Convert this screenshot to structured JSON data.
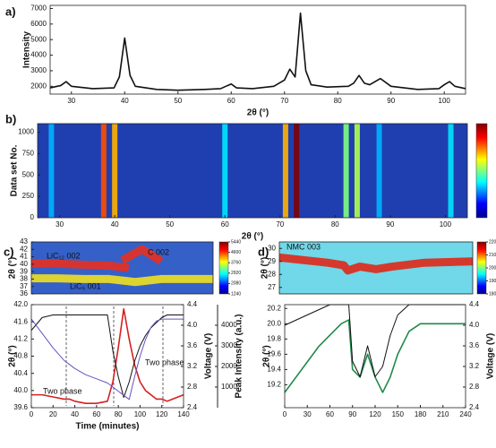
{
  "chart_data": [
    {
      "type": "line",
      "panel_label": "a)",
      "ylabel": "Intensity",
      "xlabel": "2θ (°)",
      "xlim": [
        26,
        104
      ],
      "xticks": [
        30,
        40,
        50,
        60,
        70,
        80,
        90,
        100
      ],
      "ylim": [
        1500,
        7200
      ],
      "yticks": [
        2000,
        3000,
        4000,
        5000,
        6000,
        7000
      ],
      "x": [
        26,
        28,
        29,
        30,
        34,
        38,
        39,
        40,
        41,
        42,
        46,
        50,
        55,
        58,
        59,
        60,
        61,
        64,
        68,
        70,
        71,
        72,
        73,
        74,
        75,
        78,
        82,
        83,
        84,
        85,
        86,
        88,
        90,
        95,
        99,
        100,
        101,
        102,
        104
      ],
      "series": [
        {
          "color": "#111111",
          "values": [
            1900,
            2050,
            2300,
            2000,
            1850,
            1900,
            2600,
            5100,
            2700,
            2000,
            1800,
            1750,
            1800,
            1850,
            2000,
            2150,
            1900,
            1850,
            2000,
            2400,
            3100,
            2600,
            6700,
            3000,
            2100,
            1950,
            2000,
            2200,
            2700,
            2200,
            2100,
            2500,
            2000,
            1800,
            1850,
            2100,
            2300,
            2000,
            1850
          ]
        }
      ]
    },
    {
      "type": "heatmap",
      "panel_label": "b)",
      "ylabel": "Data set No.",
      "xlabel": "2θ (°)",
      "xlim": [
        26,
        104
      ],
      "xticks": [
        30,
        40,
        50,
        60,
        70,
        80,
        90,
        100
      ],
      "ylim": [
        0,
        1100
      ],
      "yticks": [
        0,
        250,
        500,
        750,
        1000
      ],
      "background": "#1f3fb0",
      "clim": [
        0,
        1
      ],
      "peaks": [
        28.5,
        38,
        40,
        60,
        71,
        73,
        82,
        84,
        88,
        101
      ],
      "values": [
        0.3,
        0.8,
        0.7,
        0.35,
        0.7,
        1.0,
        0.5,
        0.55,
        0.3,
        0.35
      ]
    },
    {
      "type": "heatmap",
      "panel_label": "c)",
      "ylabel": "2θ (°)",
      "xlim": [
        0,
        140
      ],
      "ylim": [
        36,
        43
      ],
      "yticks": [
        36,
        37,
        38,
        39,
        40,
        41,
        42,
        43
      ],
      "background": "#3560c8",
      "clim": [
        1240,
        5440
      ],
      "cticks": [
        1240,
        2080,
        2920,
        3760,
        4600,
        5440
      ],
      "traces": [
        {
          "color": "#f0e020",
          "x": [
            0,
            20,
            40,
            60,
            80,
            100,
            120,
            140
          ],
          "values": [
            38.1,
            38.1,
            38.0,
            38.0,
            37.6,
            38.0,
            38.0,
            38.0
          ]
        },
        {
          "color": "#e83020",
          "x": [
            0,
            15,
            30,
            45,
            60,
            75
          ],
          "values": [
            40.1,
            40.1,
            40.0,
            39.9,
            39.8,
            39.5
          ]
        },
        {
          "color": "#e83020",
          "x": [
            70,
            78,
            85,
            92,
            100
          ],
          "values": [
            40.5,
            41.3,
            42.0,
            41.3,
            40.4
          ]
        }
      ],
      "annotations": [
        "LiC₁₂ 002",
        "C 002",
        "LiC₆ 001"
      ]
    },
    {
      "type": "line",
      "xlabel": "Time (minutes)",
      "ylabel": "2θ (°)",
      "y2label": "Voltage (V)",
      "y3label": "Peak Intensity (a.u.)",
      "xlim": [
        0,
        140
      ],
      "xticks": [
        0,
        20,
        40,
        60,
        80,
        100,
        120,
        140
      ],
      "ylim": [
        39.6,
        42.0
      ],
      "yticks": [
        {
          "value": 39.6,
          "label": "39.6"
        },
        {
          "value": 40,
          "label": "40.0"
        },
        40.4,
        40.8,
        41.2,
        41.6,
        {
          "value": 42,
          "label": "42.0"
        }
      ],
      "y2lim": [
        2.4,
        4.4
      ],
      "y2ticks": [
        2.4,
        2.8,
        3.2,
        3.6,
        {
          "value": 4,
          "label": "4.0"
        },
        4.4
      ],
      "y3lim": [
        0,
        5000
      ],
      "y3ticks": [
        1000,
        2000,
        3000,
        4000
      ],
      "x": [
        0,
        10,
        20,
        30,
        35,
        40,
        50,
        60,
        70,
        75,
        80,
        85,
        90,
        95,
        100,
        105,
        110,
        115,
        120,
        125,
        130,
        135,
        140
      ],
      "series": [
        {
          "color": "#d42020",
          "values": [
            39.9,
            39.9,
            39.85,
            39.8,
            39.8,
            39.75,
            39.7,
            39.7,
            39.75,
            40.2,
            41.0,
            41.9,
            41.2,
            40.6,
            40.2,
            40.0,
            39.9,
            39.8,
            39.8,
            39.75,
            39.8,
            39.85,
            39.9
          ]
        },
        {
          "color": "#111111",
          "axis": "y2",
          "values": [
            3.9,
            4.15,
            4.2,
            4.2,
            4.2,
            4.2,
            4.2,
            4.2,
            4.2,
            3.5,
            3.0,
            2.6,
            2.9,
            3.3,
            3.6,
            3.8,
            3.95,
            4.05,
            4.15,
            4.2,
            4.2,
            4.2,
            4.2
          ]
        },
        {
          "color": "#6a50c0",
          "axis": "y3",
          "values": [
            4300,
            3600,
            2900,
            2300,
            2100,
            1900,
            1600,
            1400,
            1200,
            1000,
            800,
            600,
            400,
            1500,
            2500,
            3300,
            3900,
            4200,
            4300,
            4300,
            4300,
            4300,
            4300
          ]
        }
      ],
      "annotations": [
        "Two phase",
        "Two phase"
      ]
    },
    {
      "type": "heatmap",
      "panel_label": "d)",
      "ylabel": "2θ (°)",
      "xlim": [
        0,
        240
      ],
      "ylim": [
        26.5,
        30.5
      ],
      "yticks": [
        27,
        28,
        29,
        30
      ],
      "background": "#70d8e8",
      "clim": [
        1800,
        2200
      ],
      "cticks": [
        1800,
        1900,
        2000,
        2100,
        2200
      ],
      "traces": [
        {
          "color": "#e02818",
          "x": [
            0,
            30,
            60,
            80,
            85,
            100,
            120,
            140,
            180,
            240
          ],
          "values": [
            29.3,
            29.1,
            28.9,
            28.7,
            28.3,
            28.6,
            28.4,
            28.6,
            28.9,
            29.0
          ]
        }
      ],
      "annotations": [
        "NMC 003"
      ]
    },
    {
      "type": "line",
      "ylabel": "2θ (°)",
      "y2label": "Voltage (V)",
      "xlim": [
        0,
        240
      ],
      "xticks": [
        0,
        30,
        60,
        90,
        120,
        150,
        180,
        210,
        240
      ],
      "ylim": [
        18.9,
        20.25
      ],
      "yticks": [
        19.2,
        19.4,
        19.6,
        19.8,
        {
          "value": 20,
          "label": "20.0"
        },
        20.2
      ],
      "y2lim": [
        2.4,
        4.4
      ],
      "y2ticks": [
        2.4,
        2.8,
        3.2,
        3.6,
        {
          "value": 4,
          "label": "4.0"
        },
        4.4
      ],
      "x": [
        0,
        15,
        30,
        45,
        60,
        75,
        85,
        90,
        100,
        110,
        120,
        130,
        140,
        150,
        165,
        180,
        200,
        220,
        240
      ],
      "series": [
        {
          "color": "#1f8a4a",
          "values": [
            19.1,
            19.3,
            19.5,
            19.7,
            19.85,
            20.0,
            20.05,
            19.4,
            19.3,
            19.6,
            19.3,
            19.1,
            19.3,
            19.6,
            19.9,
            20.0,
            20.0,
            20.0,
            20.0
          ]
        },
        {
          "color": "#111111",
          "axis": "y2",
          "values": [
            4.0,
            4.1,
            4.2,
            4.3,
            4.4,
            4.4,
            4.4,
            3.3,
            3.0,
            3.6,
            3.0,
            3.2,
            3.8,
            4.2,
            4.4,
            4.4,
            4.4,
            4.4,
            4.4
          ]
        }
      ]
    }
  ]
}
